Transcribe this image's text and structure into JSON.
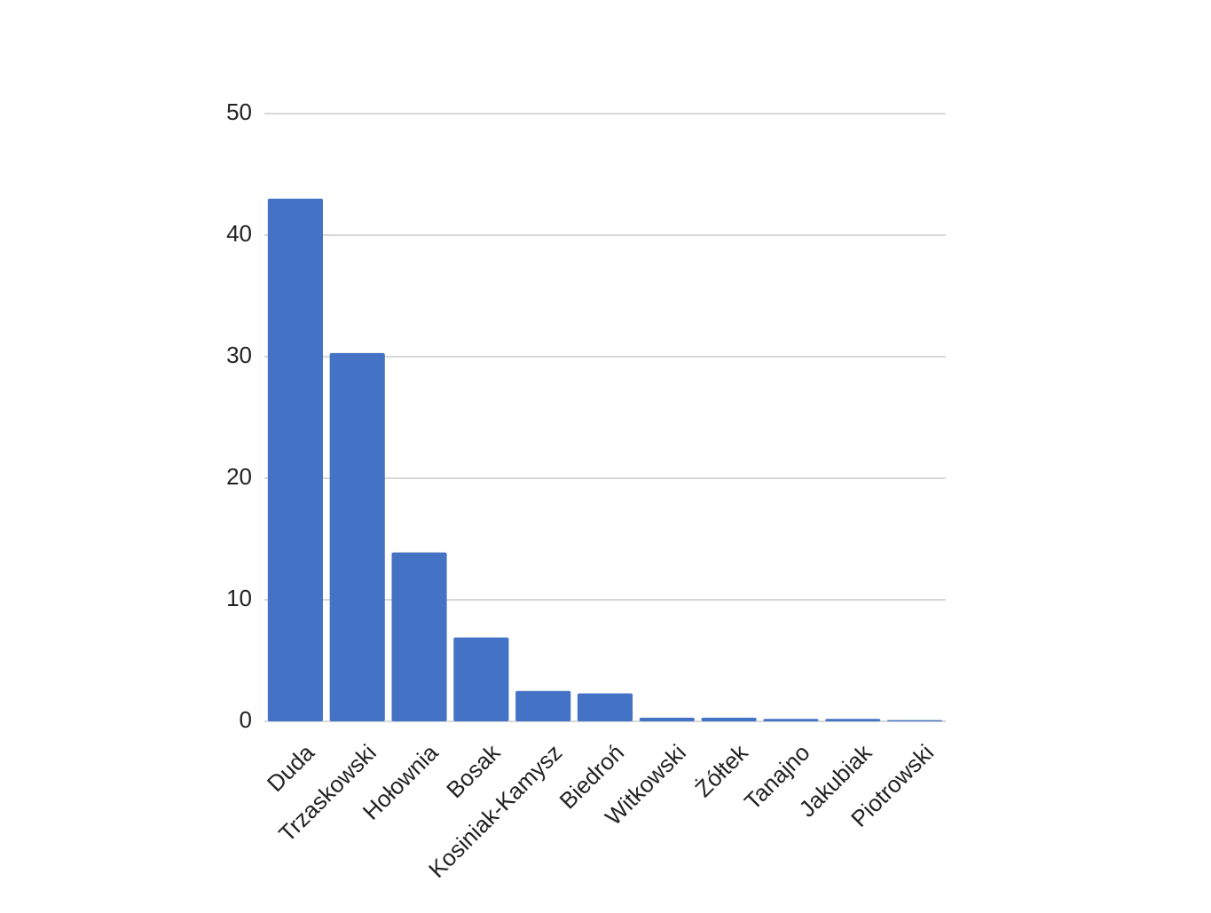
{
  "chart_data": {
    "type": "bar",
    "categories": [
      "Duda",
      "Trzaskowski",
      "Hołownia",
      "Bosak",
      "Kosiniak-Kamysz",
      "Biedroń",
      "Witkowski",
      "Żółtek",
      "Tanajno",
      "Jakubiak",
      "Piotrowski"
    ],
    "values": [
      43,
      30.3,
      13.9,
      6.9,
      2.5,
      2.3,
      0.3,
      0.3,
      0.2,
      0.2,
      0.1
    ],
    "color": "#4472c4",
    "ylim": [
      0,
      50
    ],
    "yticks": [
      0,
      10,
      20,
      30,
      40,
      50
    ],
    "grid": true
  }
}
